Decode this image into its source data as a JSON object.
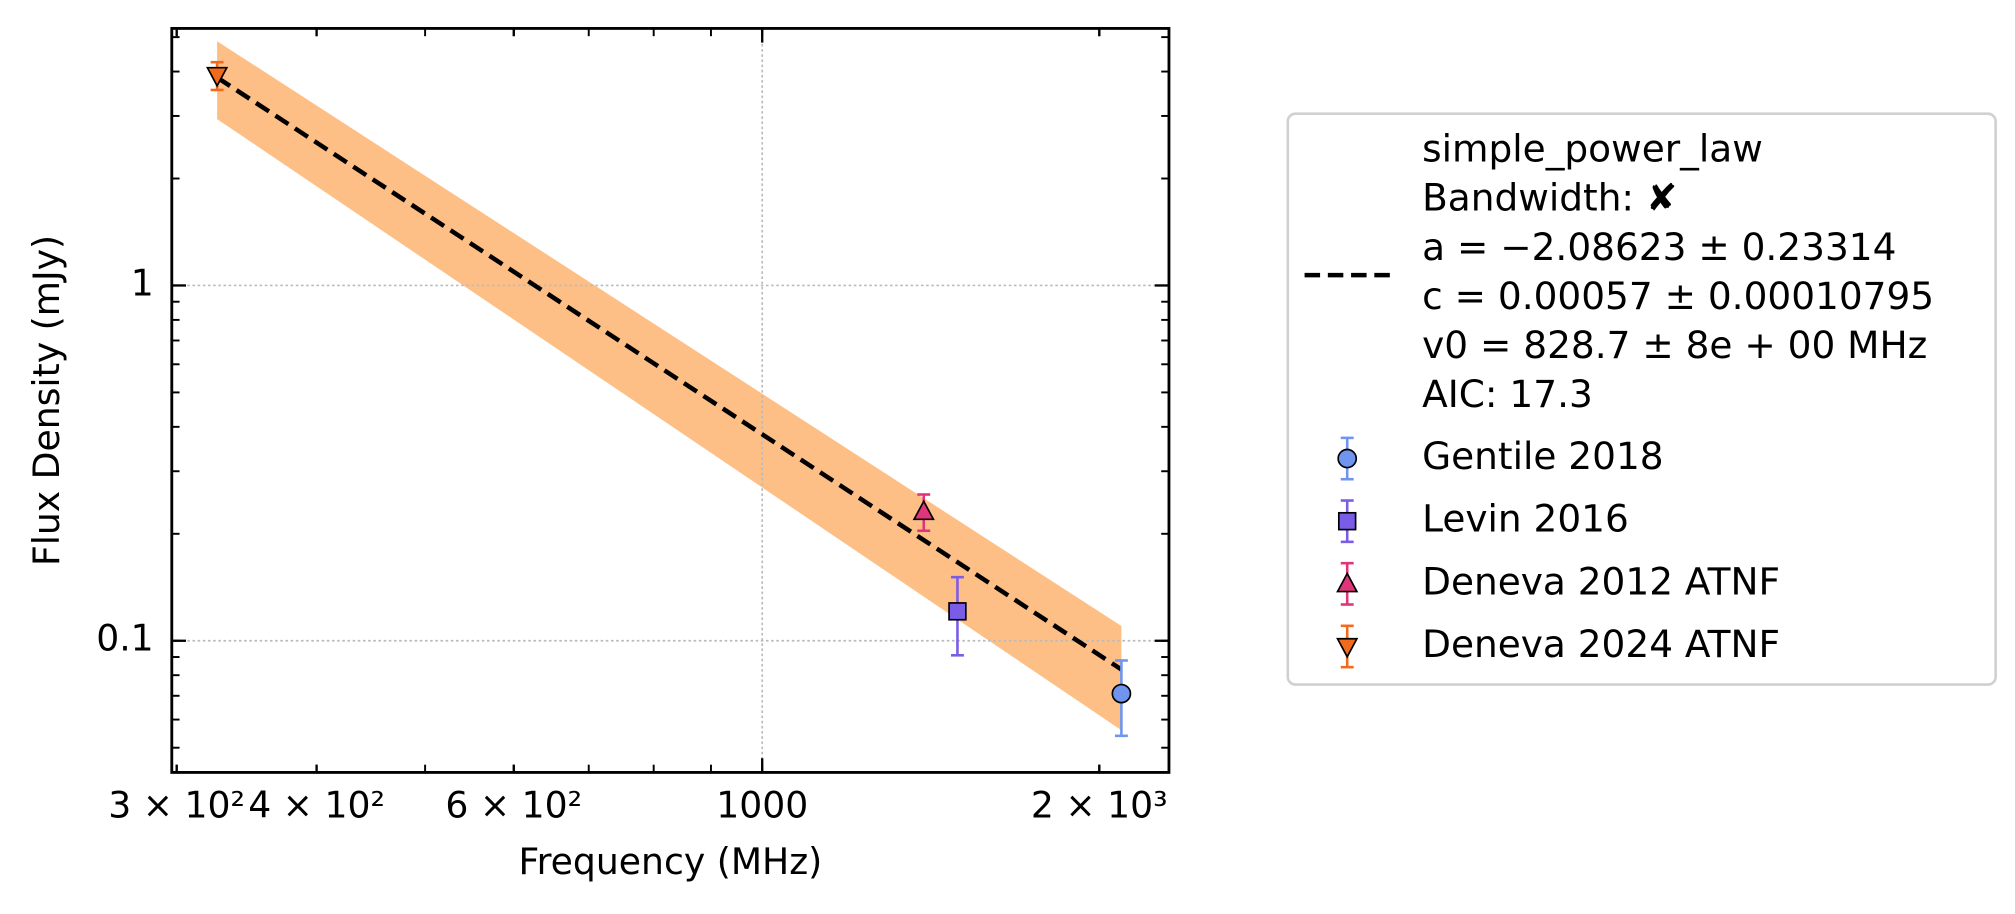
{
  "chart_data": {
    "type": "scatter",
    "x_label": "Frequency (MHz)",
    "y_label": "Flux Density (mJy)",
    "log_x": true,
    "log_y": true,
    "xlim": [
      297,
      2308
    ],
    "ylim": [
      0.0426,
      5.29
    ],
    "xticks": [
      {
        "value": 300,
        "label": "3 × 10²"
      },
      {
        "value": 400,
        "label": "4 × 10²"
      },
      {
        "value": 600,
        "label": "6 × 10²"
      },
      1000,
      {
        "value": 2000,
        "label": "2 × 10³"
      }
    ],
    "yticks": [
      0.1,
      1
    ],
    "grid": "decades",
    "fit": {
      "label_lines": [
        "simple_power_law",
        "Bandwidth: ✘",
        "a = −2.08623 ± 0.23314",
        "c = 0.00057 ± 0.00010795",
        "v0 = 828.7 ± 8e + 00 MHz",
        "AIC: 17.3"
      ],
      "color": "#000000",
      "band_color": "#fdbf86",
      "x": [
        326,
        2093
      ],
      "values": [
        3.85,
        0.083
      ],
      "band_lower": [
        2.94,
        0.056
      ],
      "band_upper": [
        4.87,
        0.11
      ]
    },
    "series": [
      {
        "name": "Gentile 2018",
        "color": "#6f95ef",
        "marker": "circle",
        "x": [
          2093
        ],
        "values": [
          0.071
        ],
        "errors": [
          0.017
        ]
      },
      {
        "name": "Levin 2016",
        "color": "#7b5ce6",
        "marker": "square",
        "x": [
          1494
        ],
        "values": [
          0.121
        ],
        "errors": [
          0.03
        ]
      },
      {
        "name": "Deneva 2012 ATNF",
        "color": "#e0357a",
        "marker": "triangle-up",
        "x": [
          1394
        ],
        "values": [
          0.231
        ],
        "errors": [
          0.027
        ]
      },
      {
        "name": "Deneva 2024 ATNF",
        "color": "#f26b1d",
        "marker": "triangle-down",
        "x": [
          326
        ],
        "values": [
          3.9
        ],
        "errors": [
          0.35
        ]
      }
    ]
  }
}
